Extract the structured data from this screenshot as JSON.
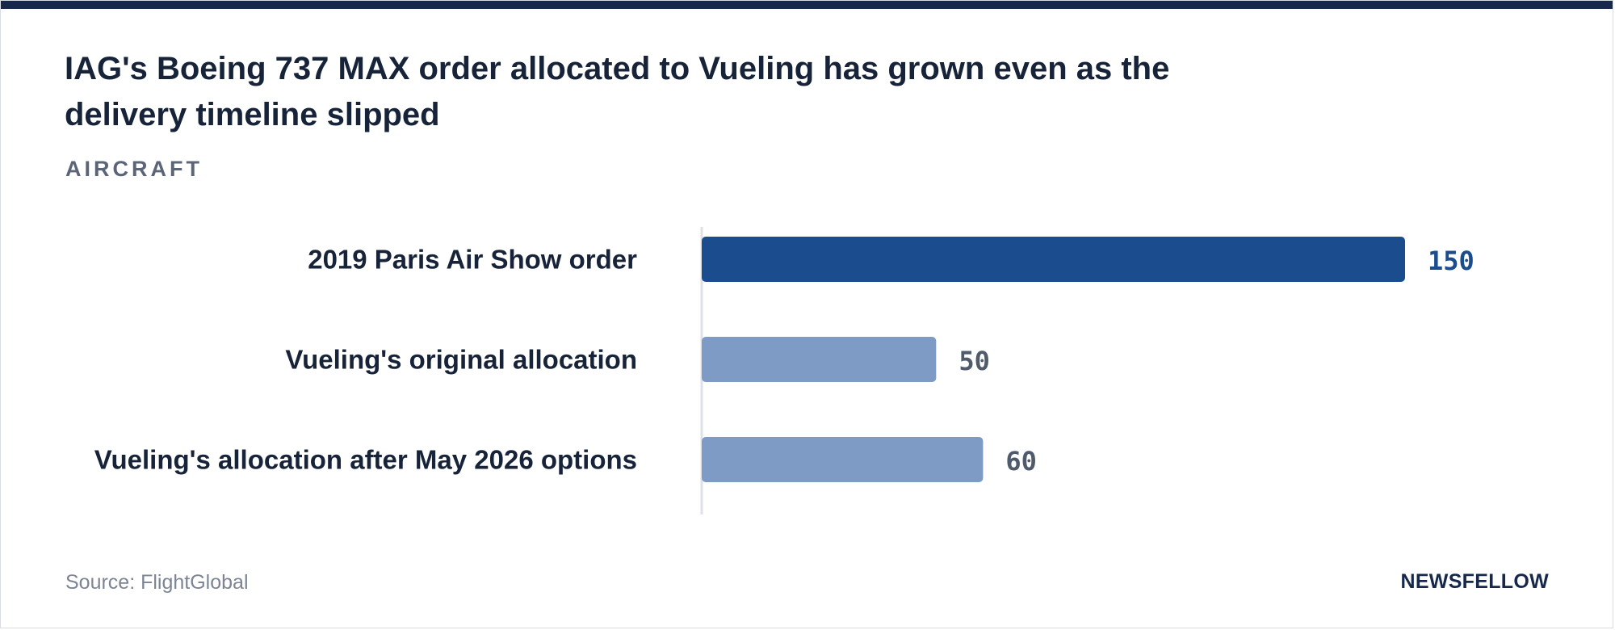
{
  "header": {
    "title": "IAG's Boeing 737 MAX order allocated to Vueling has grown even as the delivery timeline slipped",
    "subtitle": "AIRCRAFT"
  },
  "footer": {
    "source": "Source: FlightGlobal",
    "brand": "NEWSFELLOW"
  },
  "colors": {
    "accent_bar": "#1b4d8e",
    "secondary_bar": "#7d9bc4",
    "accent_value": "#1b4d8e",
    "secondary_value": "#4f5a6a",
    "label": "#172338",
    "axis": "#dde2ea",
    "top_bar": "#16294b"
  },
  "chart_data": {
    "type": "bar",
    "orientation": "horizontal",
    "title": "IAG's Boeing 737 MAX order allocated to Vueling has grown even as the delivery timeline slipped",
    "subtitle": "AIRCRAFT",
    "categories": [
      "2019 Paris Air Show order",
      "Vueling's original allocation",
      "Vueling's allocation after May 2026 options"
    ],
    "values": [
      150,
      50,
      60
    ],
    "highlight_index": 0,
    "xlim": [
      0,
      150
    ],
    "grid": false,
    "legend": "none"
  }
}
